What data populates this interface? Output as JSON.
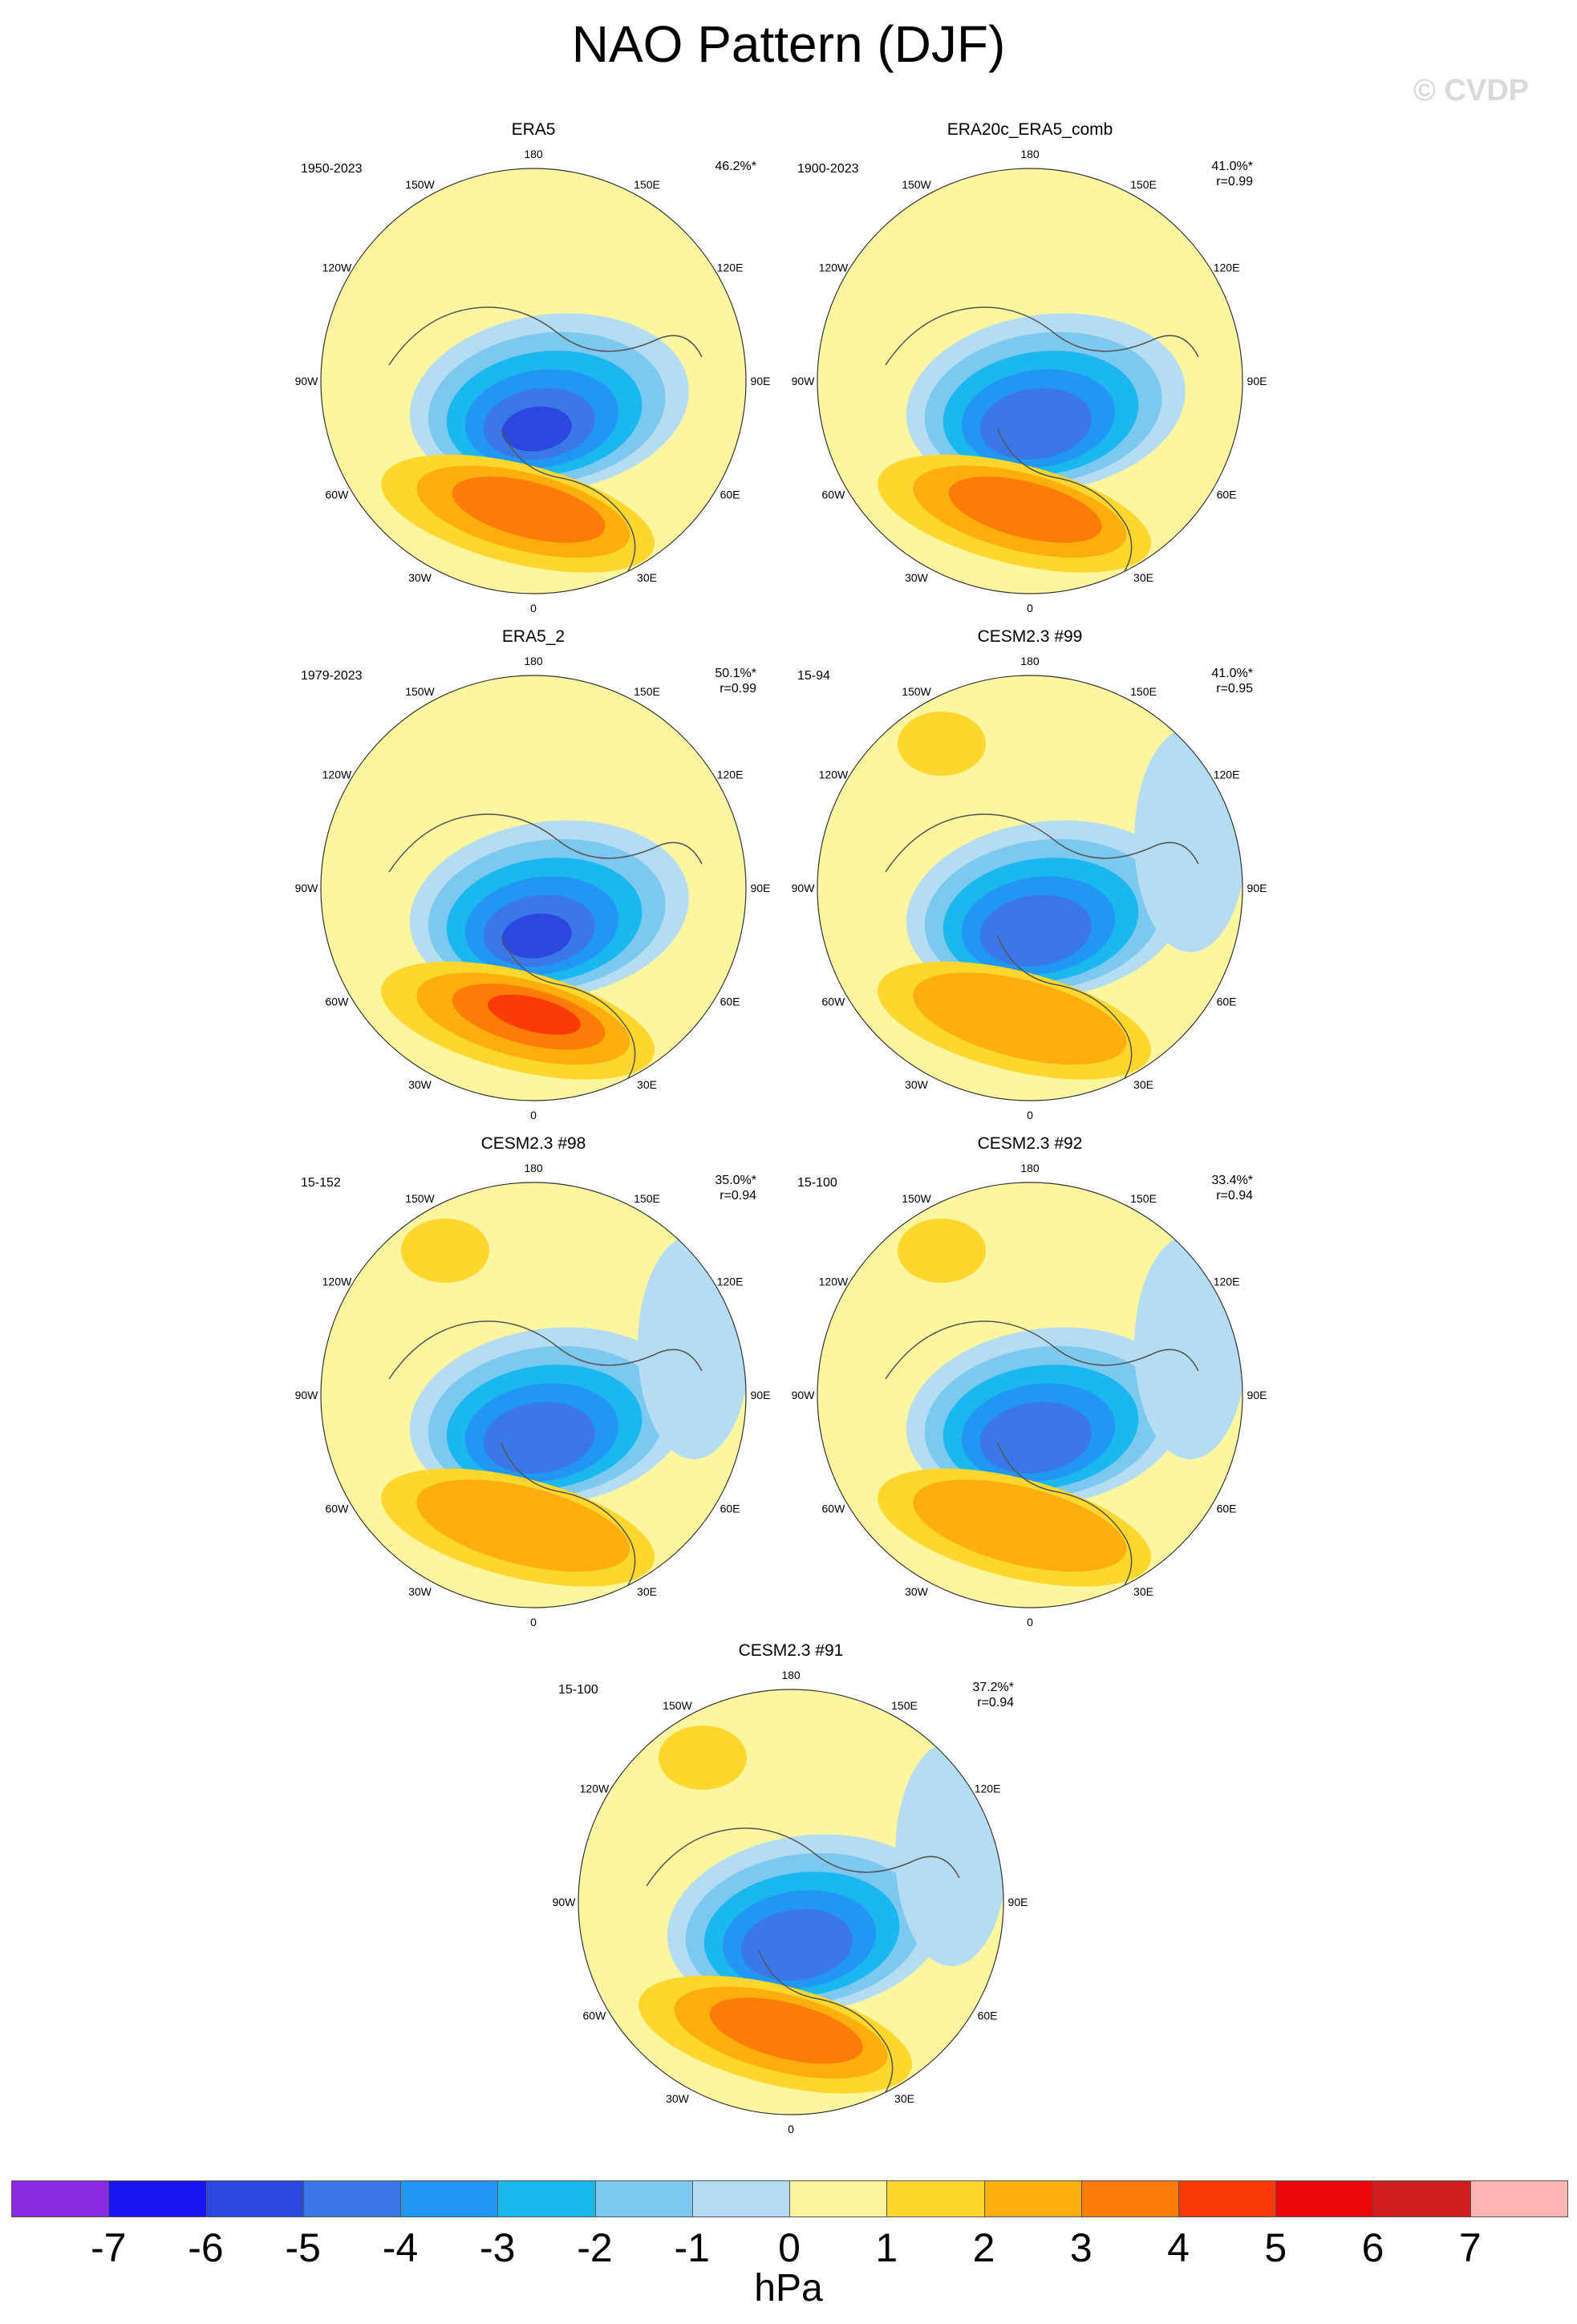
{
  "title": "NAO Pattern (DJF)",
  "watermark": "© CVDP",
  "unit": "hPa",
  "lon_labels": [
    "180",
    "150E",
    "120E",
    "90E",
    "60E",
    "30E",
    "0",
    "30W",
    "60W",
    "90W",
    "120W",
    "150W"
  ],
  "panels": [
    {
      "name": "ERA5",
      "years": "1950-2023",
      "pct": "46.2%*",
      "r": ""
    },
    {
      "name": "ERA20c_ERA5_comb",
      "years": "1900-2023",
      "pct": "41.0%*",
      "r": "r=0.99"
    },
    {
      "name": "ERA5_2",
      "years": "1979-2023",
      "pct": "50.1%*",
      "r": "r=0.99"
    },
    {
      "name": "CESM2.3 #99",
      "years": "15-94",
      "pct": "41.0%*",
      "r": "r=0.95"
    },
    {
      "name": "CESM2.3 #98",
      "years": "15-152",
      "pct": "35.0%*",
      "r": "r=0.94"
    },
    {
      "name": "CESM2.3 #92",
      "years": "15-100",
      "pct": "33.4%*",
      "r": "r=0.94"
    },
    {
      "name": "CESM2.3 #91",
      "years": "15-100",
      "pct": "37.2%*",
      "r": "r=0.94"
    }
  ],
  "colorbar": {
    "ticks": [
      "-7",
      "-6",
      "-5",
      "-4",
      "-3",
      "-2",
      "-1",
      "0",
      "1",
      "2",
      "3",
      "4",
      "5",
      "6",
      "7"
    ],
    "colors": [
      "#8a2be2",
      "#1a14f0",
      "#2a48e0",
      "#3a78e8",
      "#2196f3",
      "#1bb8f0",
      "#7cc8ee",
      "#b4dcf2",
      "#fdf6a0",
      "#fdd62e",
      "#fcae0c",
      "#fc7c08",
      "#fc3a06",
      "#ea0808",
      "#d01c1c",
      "#fcb4b4"
    ]
  }
}
